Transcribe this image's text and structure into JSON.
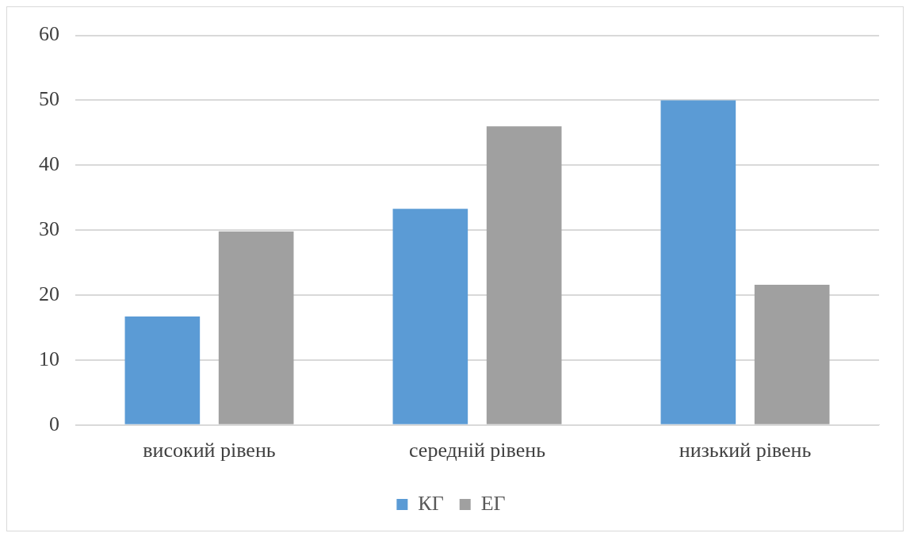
{
  "chart_data": {
    "type": "bar",
    "categories": [
      "високий рівень",
      "середній рівень",
      "низький рівень"
    ],
    "series": [
      {
        "name": "КГ",
        "color": "#5b9bd5",
        "values": [
          16.7,
          33.3,
          50
        ]
      },
      {
        "name": "ЕГ",
        "color": "#a0a0a0",
        "values": [
          29.8,
          46,
          21.6
        ]
      }
    ],
    "ylim": [
      0,
      60
    ],
    "yticks": [
      0,
      10,
      20,
      30,
      40,
      50,
      60
    ],
    "grid": "y",
    "legend": "bottom"
  }
}
